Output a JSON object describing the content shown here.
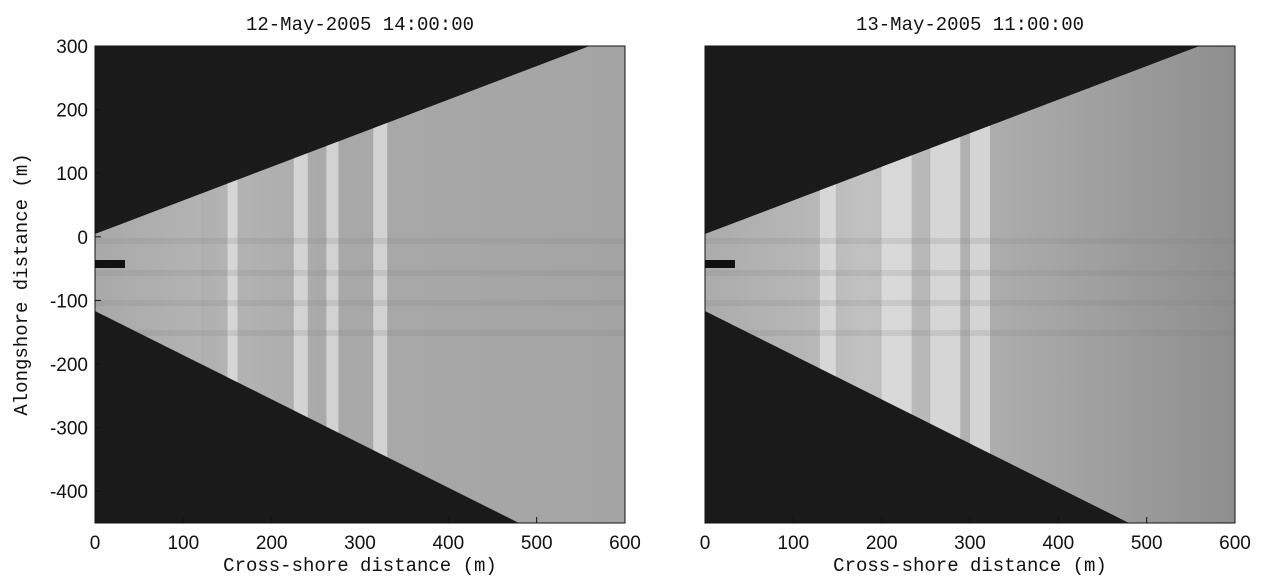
{
  "chart_data": [
    {
      "type": "image",
      "title": "12-May-2005 14:00:00",
      "xlabel": "Cross-shore distance (m)",
      "ylabel": "Alongshore distance (m)",
      "xlim": [
        0,
        600
      ],
      "ylim": [
        -450,
        300
      ],
      "xticks": [
        0,
        100,
        200,
        300,
        400,
        500,
        600
      ],
      "yticks": [
        300,
        200,
        100,
        0,
        -100,
        -200,
        -300,
        -400
      ]
    },
    {
      "type": "image",
      "title": "13-May-2005 11:00:00",
      "xlabel": "Cross-shore distance (m)",
      "xlim": [
        0,
        600
      ],
      "ylim": [
        -450,
        300
      ],
      "xticks": [
        0,
        100,
        200,
        300,
        400,
        500,
        600
      ]
    }
  ]
}
